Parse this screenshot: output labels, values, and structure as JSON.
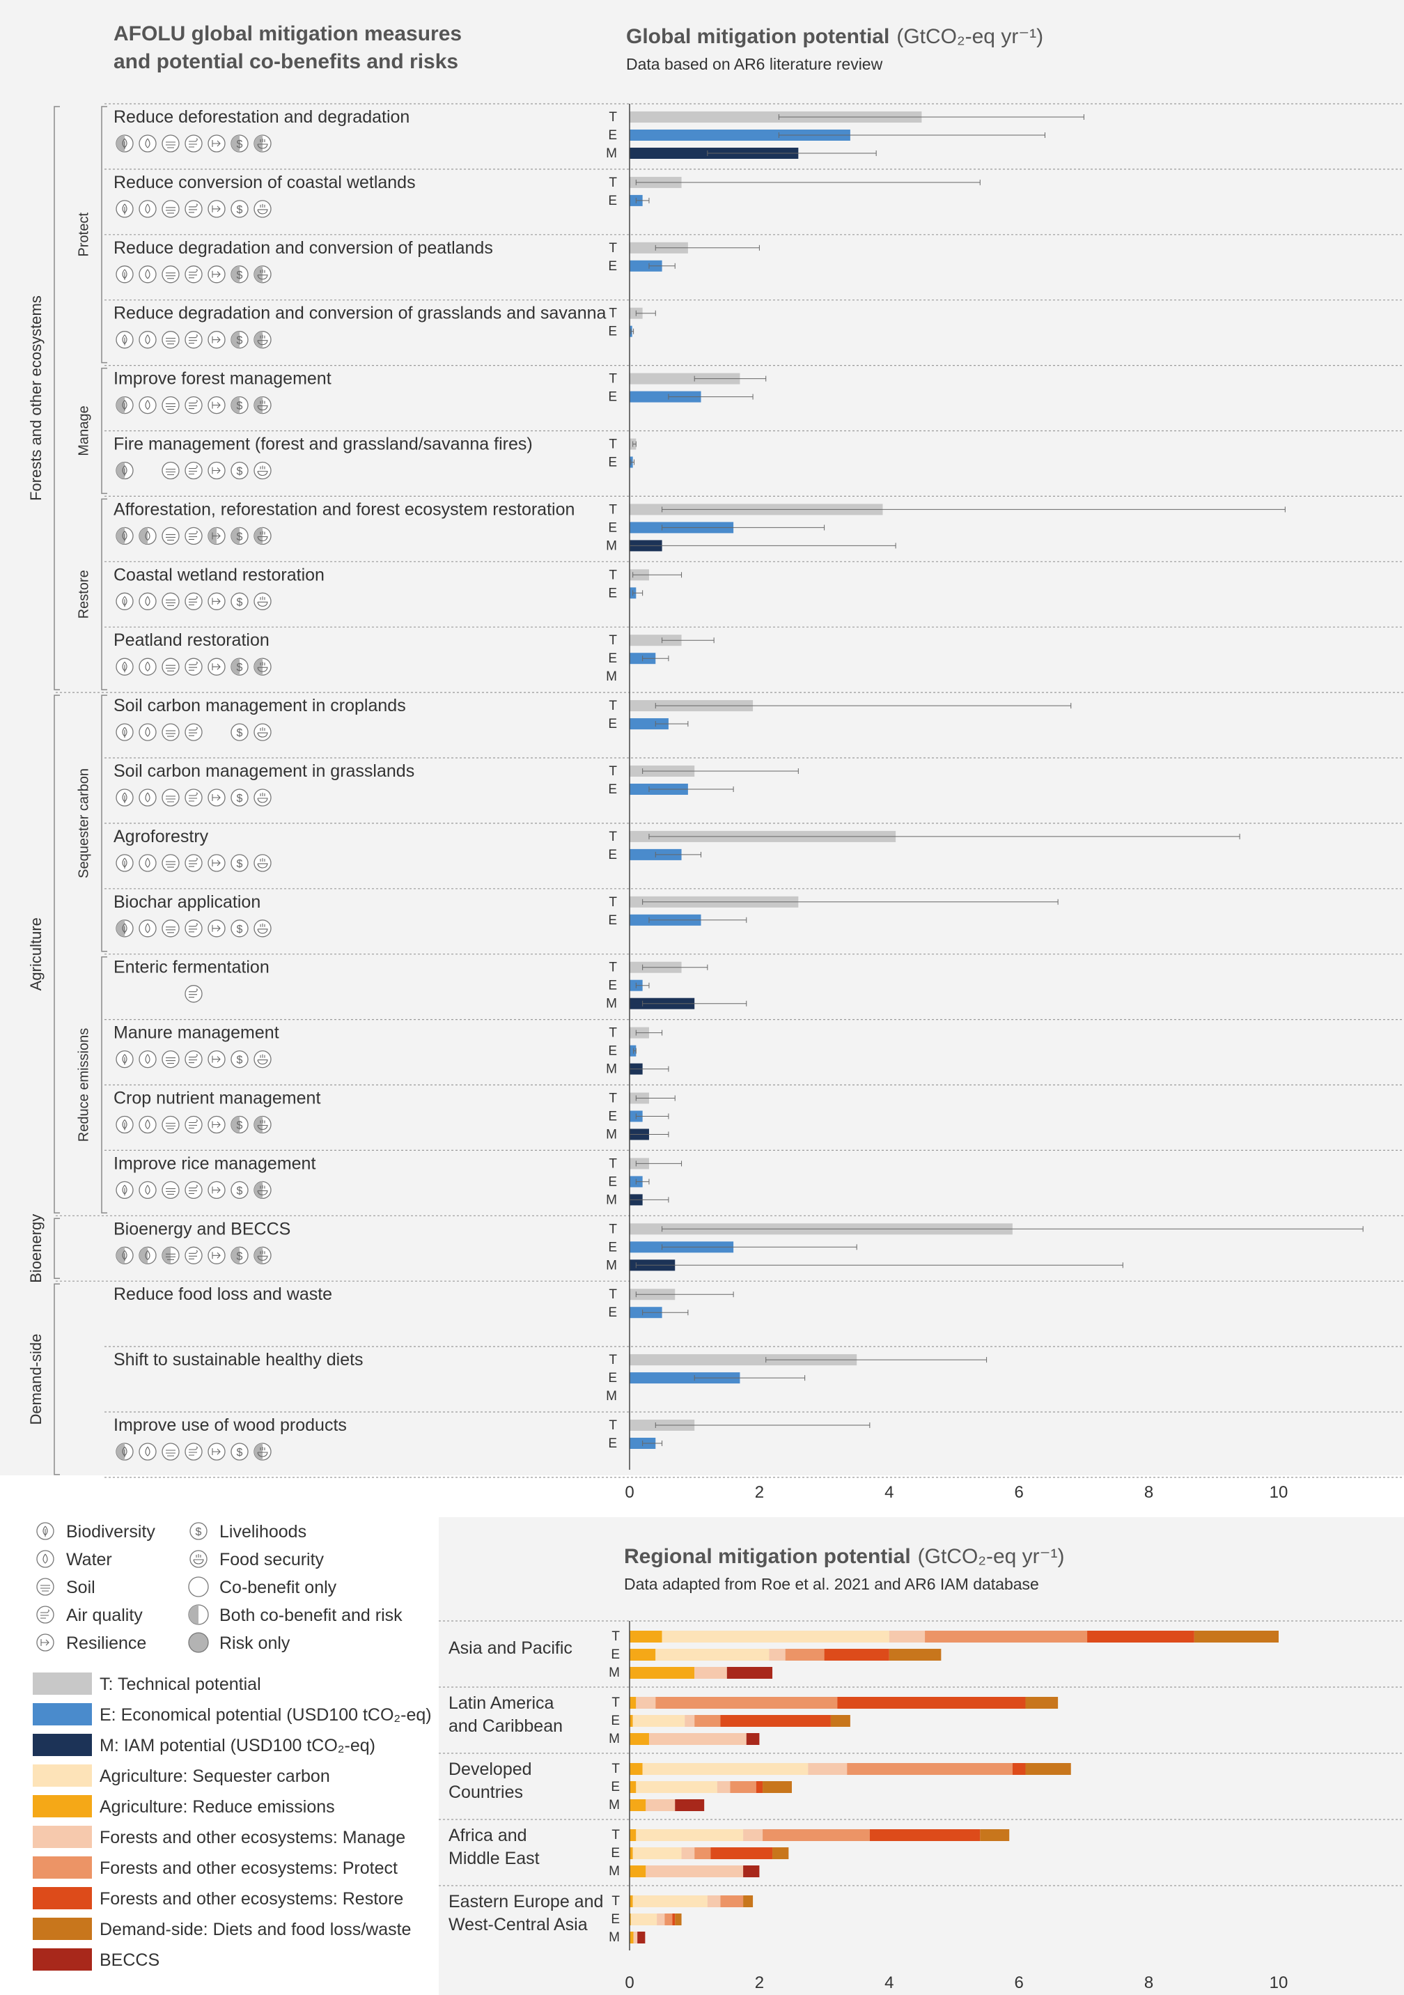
{
  "measures_panel": {
    "title_line1": "AFOLU global mitigation measures",
    "title_line2": "and potential co-benefits and risks"
  },
  "global_panel": {
    "title": "Global mitigation potential",
    "unit": "(GtCO₂-eq yr⁻¹)",
    "subtitle": "Data based on AR6 literature review"
  },
  "regional_panel": {
    "title": "Regional mitigation potential",
    "unit": "(GtCO₂-eq yr⁻¹)",
    "subtitle": "Data adapted from Roe et al. 2021 and AR6 IAM database"
  },
  "colors": {
    "T": "#c8c8c8",
    "E": "#4a8bcc",
    "M": "#1c3357",
    "ag_seq": "#fde3b8",
    "ag_red": "#f5a817",
    "for_manage": "#f6c9ad",
    "for_protect": "#ec9466",
    "for_restore": "#dd4b1a",
    "demand": "#c8761c",
    "beccs": "#a8281b",
    "icon_risk": "#b3b3b3"
  },
  "sectors": [
    {
      "name": "Forests and other ecosystems",
      "groups": [
        {
          "name": "Protect",
          "measures": [
            0,
            1,
            2,
            3
          ]
        },
        {
          "name": "Manage",
          "measures": [
            4,
            5
          ]
        },
        {
          "name": "Restore",
          "measures": [
            6,
            7,
            8
          ]
        }
      ]
    },
    {
      "name": "Agriculture",
      "groups": [
        {
          "name": "Sequester carbon",
          "measures": [
            9,
            10,
            11,
            12
          ]
        },
        {
          "name": "Reduce emissions",
          "measures": [
            13,
            14,
            15,
            16
          ]
        }
      ]
    },
    {
      "name": "Bioenergy",
      "groups": [
        {
          "name": "",
          "measures": [
            17
          ]
        }
      ]
    },
    {
      "name": "Demand-side",
      "groups": [
        {
          "name": "",
          "measures": [
            18,
            19,
            20
          ]
        }
      ]
    }
  ],
  "chart_data": [
    {
      "type": "bar",
      "title": "Global mitigation potential",
      "unit": "GtCO2-eq yr-1",
      "orientation": "horizontal",
      "xlim": [
        0,
        11.5
      ],
      "xticks": [
        0,
        2,
        4,
        6,
        8,
        10
      ],
      "series_codes": [
        "T",
        "E",
        "M"
      ],
      "measures": [
        {
          "name": "Reduce deforestation and degradation",
          "icons": [
            "both",
            "co",
            "co",
            "co",
            "co",
            "both",
            "both"
          ],
          "bars": {
            "T": [
              4.5,
              2.3,
              7.0
            ],
            "E": [
              3.4,
              2.3,
              6.4
            ],
            "M": [
              2.6,
              1.2,
              3.8
            ]
          }
        },
        {
          "name": "Reduce conversion of coastal wetlands",
          "icons": [
            "co",
            "co",
            "co",
            "co",
            "co",
            "co",
            "co"
          ],
          "bars": {
            "T": [
              0.8,
              0.1,
              5.4
            ],
            "E": [
              0.2,
              0.1,
              0.3
            ]
          }
        },
        {
          "name": "Reduce degradation and conversion of peatlands",
          "icons": [
            "co",
            "co",
            "co",
            "co",
            "co",
            "both",
            "both"
          ],
          "bars": {
            "T": [
              0.9,
              0.4,
              2.0
            ],
            "E": [
              0.5,
              0.3,
              0.7
            ]
          }
        },
        {
          "name": "Reduce degradation and conversion of grasslands and savanna",
          "icons": [
            "co",
            "co",
            "co",
            "co",
            "co",
            "both",
            "both"
          ],
          "bars": {
            "T": [
              0.2,
              0.1,
              0.4
            ],
            "E": [
              0.04,
              0.02,
              0.06
            ]
          }
        },
        {
          "name": "Improve forest management",
          "icons": [
            "both",
            "co",
            "co",
            "co",
            "co",
            "both",
            "both"
          ],
          "bars": {
            "T": [
              1.7,
              1.0,
              2.1
            ],
            "E": [
              1.1,
              0.6,
              1.9
            ]
          }
        },
        {
          "name": "Fire management (forest and grassland/savanna fires)",
          "icons": [
            "both",
            "",
            "co",
            "co",
            "co",
            "co",
            "co"
          ],
          "bars": {
            "T": [
              0.1,
              0.05,
              0.1
            ],
            "E": [
              0.05,
              0.02,
              0.07
            ]
          }
        },
        {
          "name": "Afforestation, reforestation and forest ecosystem restoration",
          "icons": [
            "both",
            "both",
            "co",
            "co",
            "both",
            "both",
            "both"
          ],
          "bars": {
            "T": [
              3.9,
              0.5,
              10.1
            ],
            "E": [
              1.6,
              0.5,
              3.0
            ],
            "M": [
              0.5,
              0.0,
              4.1
            ]
          }
        },
        {
          "name": "Coastal wetland restoration",
          "icons": [
            "co",
            "co",
            "co",
            "co",
            "co",
            "co",
            "co"
          ],
          "bars": {
            "T": [
              0.3,
              0.05,
              0.8
            ],
            "E": [
              0.1,
              0.05,
              0.2
            ]
          }
        },
        {
          "name": "Peatland restoration",
          "icons": [
            "co",
            "co",
            "co",
            "co",
            "co",
            "both",
            "both"
          ],
          "bars": {
            "T": [
              0.8,
              0.5,
              1.3
            ],
            "E": [
              0.4,
              0.2,
              0.6
            ]
          }
        },
        {
          "name": "Soil carbon management in croplands",
          "icons": [
            "co",
            "co",
            "co",
            "co",
            "",
            "co",
            "co"
          ],
          "bars": {
            "T": [
              1.9,
              0.4,
              6.8
            ],
            "E": [
              0.6,
              0.4,
              0.9
            ]
          }
        },
        {
          "name": "Soil carbon management in grasslands",
          "icons": [
            "co",
            "co",
            "co",
            "co",
            "co",
            "co",
            "co"
          ],
          "bars": {
            "T": [
              1.0,
              0.2,
              2.6
            ],
            "E": [
              0.9,
              0.3,
              1.6
            ]
          }
        },
        {
          "name": "Agroforestry",
          "icons": [
            "co",
            "co",
            "co",
            "co",
            "co",
            "co",
            "co"
          ],
          "bars": {
            "T": [
              4.1,
              0.3,
              9.4
            ],
            "E": [
              0.8,
              0.4,
              1.1
            ]
          }
        },
        {
          "name": "Biochar application",
          "icons": [
            "both",
            "co",
            "co",
            "co",
            "co",
            "co",
            "co"
          ],
          "bars": {
            "T": [
              2.6,
              0.2,
              6.6
            ],
            "E": [
              1.1,
              0.3,
              1.8
            ]
          }
        },
        {
          "name": "Enteric fermentation",
          "icons": [
            "",
            "",
            "",
            "co",
            "",
            "",
            ""
          ],
          "bars": {
            "T": [
              0.8,
              0.2,
              1.2
            ],
            "E": [
              0.2,
              0.1,
              0.3
            ],
            "M": [
              1.0,
              0.2,
              1.8
            ]
          }
        },
        {
          "name": "Manure management",
          "icons": [
            "co",
            "co",
            "co",
            "co",
            "co",
            "co",
            "co"
          ],
          "bars": {
            "T": [
              0.3,
              0.1,
              0.5
            ],
            "E": [
              0.1,
              0.06,
              0.1
            ],
            "M": [
              0.2,
              0.0,
              0.6
            ]
          }
        },
        {
          "name": "Crop nutrient management",
          "icons": [
            "co",
            "co",
            "co",
            "co",
            "co",
            "both",
            "both"
          ],
          "bars": {
            "T": [
              0.3,
              0.1,
              0.7
            ],
            "E": [
              0.2,
              0.1,
              0.6
            ],
            "M": [
              0.3,
              0.0,
              0.6
            ]
          }
        },
        {
          "name": "Improve rice management",
          "icons": [
            "co",
            "co",
            "co",
            "co",
            "co",
            "co",
            "both"
          ],
          "bars": {
            "T": [
              0.3,
              0.1,
              0.8
            ],
            "E": [
              0.2,
              0.1,
              0.3
            ],
            "M": [
              0.2,
              0.0,
              0.6
            ]
          }
        },
        {
          "name": "Bioenergy and BECCS",
          "icons": [
            "both",
            "both",
            "both",
            "co",
            "co",
            "both",
            "both"
          ],
          "bars": {
            "T": [
              5.9,
              0.5,
              11.3
            ],
            "E": [
              1.6,
              0.5,
              3.5
            ],
            "M": [
              0.7,
              0.1,
              7.6
            ]
          }
        },
        {
          "name": "Reduce food loss and waste",
          "icons": [],
          "bars": {
            "T": [
              0.7,
              0.1,
              1.6
            ],
            "E": [
              0.5,
              0.2,
              0.9
            ]
          }
        },
        {
          "name": "Shift to sustainable healthy diets",
          "icons": [],
          "bars": {
            "T": [
              3.5,
              2.1,
              5.5
            ],
            "E": [
              1.7,
              1.0,
              2.7
            ]
          }
        },
        {
          "name": "Improve use of wood products",
          "icons": [
            "both",
            "co",
            "co",
            "co",
            "co",
            "co",
            "both"
          ],
          "bars": {
            "T": [
              1.0,
              0.4,
              3.7
            ],
            "E": [
              0.4,
              0.2,
              0.5
            ]
          }
        }
      ]
    },
    {
      "type": "bar",
      "title": "Regional mitigation potential",
      "unit": "GtCO2-eq yr-1",
      "orientation": "horizontal-stacked",
      "xlim": [
        0,
        11.5
      ],
      "xticks": [
        0,
        2,
        4,
        6,
        8,
        10
      ],
      "categories": [
        "ag_red",
        "ag_seq",
        "for_manage",
        "for_protect",
        "for_restore",
        "demand",
        "beccs"
      ],
      "regions": [
        {
          "name": [
            "Asia and Pacific"
          ],
          "rows": {
            "T": [
              0.5,
              3.5,
              0.55,
              2.5,
              1.65,
              1.3,
              0.0
            ],
            "E": [
              0.4,
              1.75,
              0.25,
              0.6,
              1.0,
              0.8,
              0.0
            ],
            "M": [
              1.0,
              0.0,
              0.5,
              0.0,
              0.0,
              0.0,
              0.7
            ]
          }
        },
        {
          "name": [
            "Latin America",
            "and Caribbean"
          ],
          "rows": {
            "T": [
              0.1,
              0.0,
              0.3,
              2.8,
              2.9,
              0.5,
              0.0
            ],
            "E": [
              0.05,
              0.8,
              0.15,
              0.4,
              1.7,
              0.3,
              0.0
            ],
            "M": [
              0.3,
              0.0,
              1.5,
              0.0,
              0.0,
              0.0,
              0.2
            ]
          }
        },
        {
          "name": [
            "Developed",
            "Countries"
          ],
          "rows": {
            "T": [
              0.2,
              2.55,
              0.6,
              2.55,
              0.2,
              0.7,
              0.0
            ],
            "E": [
              0.1,
              1.25,
              0.2,
              0.4,
              0.1,
              0.45,
              0.0
            ],
            "M": [
              0.25,
              0.0,
              0.45,
              0.0,
              0.0,
              0.0,
              0.45
            ]
          }
        },
        {
          "name": [
            "Africa and",
            "Middle East"
          ],
          "rows": {
            "T": [
              0.1,
              1.65,
              0.3,
              1.65,
              1.7,
              0.45,
              0.0
            ],
            "E": [
              0.05,
              0.75,
              0.2,
              0.25,
              0.95,
              0.25,
              0.0
            ],
            "M": [
              0.25,
              0.0,
              1.5,
              0.0,
              0.0,
              0.0,
              0.25
            ]
          }
        },
        {
          "name": [
            "Eastern Europe and",
            "West-Central Asia"
          ],
          "rows": {
            "T": [
              0.05,
              1.15,
              0.2,
              0.35,
              0.0,
              0.15,
              0.0
            ],
            "E": [
              0.02,
              0.4,
              0.12,
              0.12,
              0.04,
              0.1,
              0.0
            ],
            "M": [
              0.06,
              0.0,
              0.06,
              0.0,
              0.0,
              0.0,
              0.12
            ]
          }
        }
      ]
    }
  ],
  "legend": {
    "cobenefits": [
      {
        "icon": "biodiversity",
        "label": "Biodiversity"
      },
      {
        "icon": "water",
        "label": "Water"
      },
      {
        "icon": "soil",
        "label": "Soil"
      },
      {
        "icon": "air",
        "label": "Air quality"
      },
      {
        "icon": "resilience",
        "label": "Resilience"
      },
      {
        "icon": "livelihoods",
        "label": "Livelihoods"
      },
      {
        "icon": "food",
        "label": "Food security"
      },
      {
        "icon": "co",
        "label": "Co-benefit only"
      },
      {
        "icon": "both",
        "label": "Both co-benefit and risk"
      },
      {
        "icon": "risk",
        "label": "Risk only"
      }
    ],
    "swatches": [
      {
        "key": "T",
        "label": "T: Technical potential"
      },
      {
        "key": "E",
        "label": "E: Economical potential (USD100 tCO₂-eq)"
      },
      {
        "key": "M",
        "label": "M: IAM potential (USD100 tCO₂-eq)"
      },
      {
        "key": "ag_seq",
        "label": "Agriculture: Sequester carbon"
      },
      {
        "key": "ag_red",
        "label": "Agriculture: Reduce emissions"
      },
      {
        "key": "for_manage",
        "label": "Forests and other ecosystems: Manage"
      },
      {
        "key": "for_protect",
        "label": "Forests and other ecosystems: Protect"
      },
      {
        "key": "for_restore",
        "label": "Forests and other ecosystems: Restore"
      },
      {
        "key": "demand",
        "label": "Demand-side: Diets and food loss/waste"
      },
      {
        "key": "beccs",
        "label": "BECCS"
      }
    ]
  }
}
